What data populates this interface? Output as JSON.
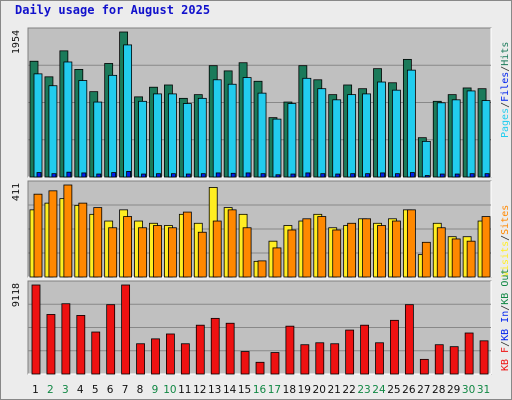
{
  "title": "Daily usage for August 2025",
  "colors": {
    "pages": "#1b7a5a",
    "hits_highlight": "#22ccee",
    "files": "#0022ee",
    "sites": "#ff8800",
    "visits": "#ffee22",
    "kbf": "#ee1111",
    "panel_bg": "#c0c0c0",
    "weekend_label": "#118844",
    "weekday_label": "#111111"
  },
  "chart_data": [
    {
      "type": "bar",
      "panel": "top",
      "max_label": "1954",
      "categories": [
        "1",
        "2",
        "3",
        "4",
        "5",
        "6",
        "7",
        "8",
        "9",
        "10",
        "11",
        "12",
        "13",
        "14",
        "15",
        "16",
        "17",
        "18",
        "19",
        "20",
        "21",
        "22",
        "23",
        "24",
        "25",
        "26",
        "27",
        "28",
        "29",
        "30",
        "31"
      ],
      "series": [
        {
          "name": "Pages",
          "values": [
            1560,
            1350,
            1700,
            1450,
            1150,
            1530,
            1954,
            1080,
            1210,
            1240,
            1060,
            1110,
            1500,
            1430,
            1540,
            1290,
            800,
            1010,
            1500,
            1310,
            1110,
            1240,
            1190,
            1460,
            1270,
            1585,
            530,
            1020,
            1110,
            1200,
            1190
          ]
        },
        {
          "name": "Hits",
          "values": [
            1390,
            1230,
            1550,
            1300,
            1010,
            1370,
            1780,
            1020,
            1120,
            1120,
            990,
            1060,
            1310,
            1250,
            1340,
            1130,
            780,
            990,
            1330,
            1190,
            1040,
            1110,
            1120,
            1280,
            1170,
            1440,
            480,
            1000,
            1040,
            1160,
            1030
          ]
        },
        {
          "name": "Files",
          "values": [
            60,
            45,
            65,
            55,
            40,
            60,
            75,
            40,
            45,
            45,
            40,
            45,
            55,
            50,
            55,
            45,
            30,
            40,
            55,
            45,
            40,
            45,
            45,
            55,
            45,
            60,
            20,
            40,
            40,
            45,
            45
          ]
        }
      ]
    },
    {
      "type": "bar",
      "panel": "middle",
      "max_label": "411",
      "categories": [
        "1",
        "2",
        "3",
        "4",
        "5",
        "6",
        "7",
        "8",
        "9",
        "10",
        "11",
        "12",
        "13",
        "14",
        "15",
        "16",
        "17",
        "18",
        "19",
        "20",
        "21",
        "22",
        "23",
        "24",
        "25",
        "26",
        "27",
        "28",
        "29",
        "30",
        "31"
      ],
      "series": [
        {
          "name": "Visits",
          "values": [
            300,
            330,
            350,
            320,
            280,
            250,
            300,
            250,
            240,
            230,
            280,
            240,
            400,
            310,
            280,
            70,
            160,
            230,
            250,
            280,
            220,
            230,
            260,
            240,
            260,
            300,
            100,
            240,
            180,
            180,
            250
          ]
        },
        {
          "name": "Sites",
          "values": [
            370,
            385,
            411,
            330,
            310,
            220,
            270,
            220,
            230,
            220,
            290,
            200,
            250,
            300,
            220,
            72,
            130,
            210,
            260,
            270,
            210,
            240,
            260,
            230,
            250,
            300,
            155,
            220,
            170,
            160,
            270
          ]
        }
      ]
    },
    {
      "type": "bar",
      "panel": "bottom",
      "max_label": "9118",
      "categories": [
        "1",
        "2",
        "3",
        "4",
        "5",
        "6",
        "7",
        "8",
        "9",
        "10",
        "11",
        "12",
        "13",
        "14",
        "15",
        "16",
        "17",
        "18",
        "19",
        "20",
        "21",
        "22",
        "23",
        "24",
        "25",
        "26",
        "27",
        "28",
        "29",
        "30",
        "31"
      ],
      "series": [
        {
          "name": "KB F",
          "values": [
            9118,
            6100,
            7200,
            6000,
            4300,
            7100,
            9118,
            3100,
            3600,
            4100,
            3100,
            5000,
            5700,
            5200,
            2300,
            1200,
            2200,
            4900,
            3000,
            3200,
            3100,
            4500,
            5000,
            3200,
            5500,
            7100,
            1500,
            3000,
            2800,
            4200,
            3400
          ]
        }
      ]
    }
  ],
  "legend": {
    "top": [
      "Pages",
      "/",
      "Files",
      "/",
      "Hits"
    ],
    "middle": [
      "Visits",
      "/",
      "Sites"
    ],
    "bottom": [
      "KB F",
      "/",
      "KB In",
      "/",
      "KB Out"
    ]
  },
  "weekend_days": [
    "2",
    "3",
    "9",
    "10",
    "16",
    "17",
    "23",
    "24",
    "30",
    "31"
  ]
}
